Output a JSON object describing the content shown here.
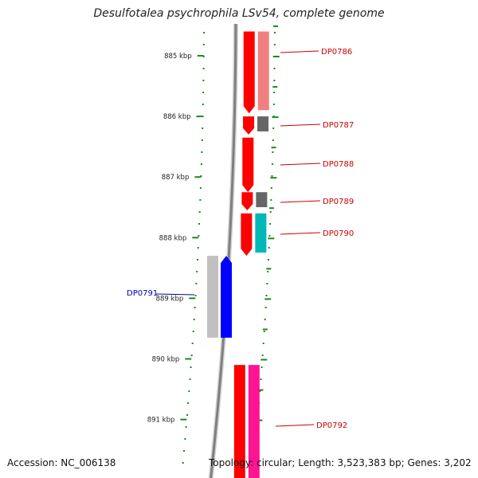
{
  "title": "Desulfotalea psychrophila LSv54, complete genome",
  "footer": {
    "accession": "Accession: NC_006138",
    "topology": "Topology: circular; Length: 3,523,383 bp; Genes: 3,202"
  },
  "colors": {
    "tick": "#1b8a1b",
    "label_red": "#cc0000",
    "label_blue": "#0000aa",
    "backbone": "#808080"
  },
  "scale_labels": [
    {
      "label": "885 kbp",
      "kbp": 885
    },
    {
      "label": "886 kbp",
      "kbp": 886
    },
    {
      "label": "887 kbp",
      "kbp": 887
    },
    {
      "label": "888 kbp",
      "kbp": 888
    },
    {
      "label": "889 kbp",
      "kbp": 889
    },
    {
      "label": "890 kbp",
      "kbp": 890
    },
    {
      "label": "891 kbp",
      "kbp": 891
    }
  ],
  "genes": [
    {
      "name": "DP0786",
      "start_kbp": 884.6,
      "end_kbp": 885.95,
      "strand": "+",
      "color": "#ff0000",
      "paired_color": "#f08080"
    },
    {
      "name": "DP0787",
      "start_kbp": 886.0,
      "end_kbp": 886.3,
      "strand": "+",
      "color": "#ff0000",
      "paired_color": "#666666"
    },
    {
      "name": "DP0788",
      "start_kbp": 886.35,
      "end_kbp": 887.25,
      "strand": "+",
      "color": "#ff0000",
      "paired_color": null
    },
    {
      "name": "DP0789",
      "start_kbp": 887.25,
      "end_kbp": 887.55,
      "strand": "+",
      "color": "#ff0000",
      "paired_color": "#666666"
    },
    {
      "name": "DP0790",
      "start_kbp": 887.6,
      "end_kbp": 888.3,
      "strand": "+",
      "color": "#ff0000",
      "paired_color": "#00b8b8"
    },
    {
      "name": "DP0791",
      "start_kbp": 888.3,
      "end_kbp": 889.65,
      "strand": "-",
      "color": "#0000ff",
      "paired_color": "#c0c0c0"
    },
    {
      "name": "DP0792",
      "start_kbp": 890.1,
      "end_kbp": 892.0,
      "strand": "+",
      "color": "#ff0000",
      "paired_color": "#ff1493"
    }
  ]
}
